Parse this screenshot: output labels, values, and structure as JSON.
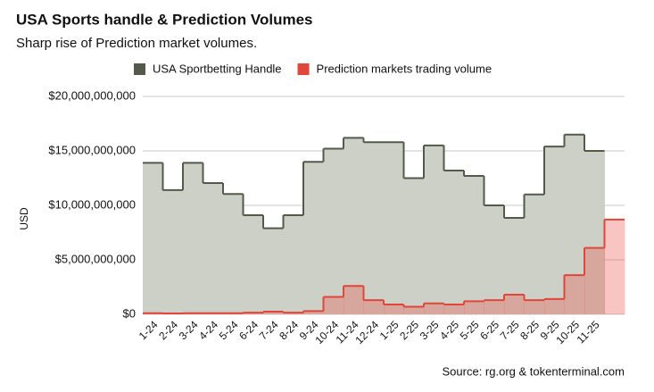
{
  "chart_data": {
    "type": "step-area",
    "title": "USA Sports handle & Prediction Volumes",
    "subtitle": "Sharp rise of Prediction market volumes.",
    "y_label": "USD",
    "source": "Source: rg.org & tokenterminal.com",
    "categories": [
      "1-24",
      "2-24",
      "3-24",
      "4-24",
      "5-24",
      "6-24",
      "7-24",
      "8-24",
      "9-24",
      "10-24",
      "11-24",
      "12-24",
      "1-25",
      "2-25",
      "3-25",
      "4-25",
      "5-25",
      "6-25",
      "7-25",
      "8-25",
      "9-25",
      "10-25",
      "11-25",
      null
    ],
    "series": [
      {
        "name": "USA Sportbetting Handle",
        "color": "#535a4b",
        "fill": "#cdd0c6",
        "values": [
          13900000000,
          11400000000,
          13900000000,
          12050000000,
          11050000000,
          9100000000,
          7900000000,
          9100000000,
          14000000000,
          15200000000,
          16200000000,
          15800000000,
          15800000000,
          12500000000,
          15500000000,
          13200000000,
          12700000000,
          10000000000,
          8850000000,
          11000000000,
          15400000000,
          16500000000,
          15000000000,
          null
        ]
      },
      {
        "name": "Prediction markets trading volume",
        "color": "#e0463a",
        "fill": "rgba(236,90,80,0.35)",
        "values": [
          100000000,
          80000000,
          100000000,
          100000000,
          100000000,
          150000000,
          250000000,
          150000000,
          300000000,
          1600000000,
          2600000000,
          1300000000,
          900000000,
          700000000,
          1000000000,
          900000000,
          1200000000,
          1300000000,
          1800000000,
          1300000000,
          1400000000,
          3600000000,
          6100000000,
          8700000000
        ]
      }
    ],
    "ylim": [
      0,
      20000000000
    ],
    "yticks": [
      {
        "value": 0,
        "label": "$0"
      },
      {
        "value": 5000000000,
        "label": "$5,000,000,000"
      },
      {
        "value": 10000000000,
        "label": "$10,000,000,000"
      },
      {
        "value": 15000000000,
        "label": "$15,000,000,000"
      },
      {
        "value": 20000000000,
        "label": "$20,000,000,000"
      }
    ],
    "grid": true
  }
}
